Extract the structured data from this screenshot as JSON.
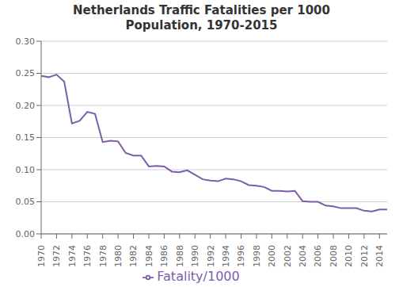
{
  "chart_data": {
    "type": "line",
    "title": "Netherlands Traffic Fatalities per 1000\nPopulation, 1970-2015",
    "x": [
      1970,
      1971,
      1972,
      1973,
      1974,
      1975,
      1976,
      1977,
      1978,
      1979,
      1980,
      1981,
      1982,
      1983,
      1984,
      1985,
      1986,
      1987,
      1988,
      1989,
      1990,
      1991,
      1992,
      1993,
      1994,
      1995,
      1996,
      1997,
      1998,
      1999,
      2000,
      2001,
      2002,
      2003,
      2004,
      2005,
      2006,
      2007,
      2008,
      2009,
      2010,
      2011,
      2012,
      2013,
      2014,
      2015
    ],
    "series": [
      {
        "name": "Fatality/1000",
        "color": "#7B5EA7",
        "values": [
          0.246,
          0.244,
          0.248,
          0.237,
          0.172,
          0.176,
          0.19,
          0.187,
          0.143,
          0.145,
          0.144,
          0.126,
          0.122,
          0.122,
          0.105,
          0.106,
          0.105,
          0.097,
          0.096,
          0.099,
          0.092,
          0.085,
          0.083,
          0.082,
          0.086,
          0.085,
          0.082,
          0.076,
          0.075,
          0.073,
          0.067,
          0.067,
          0.066,
          0.067,
          0.051,
          0.05,
          0.05,
          0.044,
          0.043,
          0.04,
          0.04,
          0.04,
          0.036,
          0.035,
          0.038,
          0.038
        ]
      }
    ],
    "xlim": [
      1970,
      2015
    ],
    "xticks": [
      1970,
      1972,
      1974,
      1976,
      1978,
      1980,
      1982,
      1984,
      1986,
      1988,
      1990,
      1992,
      1994,
      1996,
      1998,
      2000,
      2002,
      2004,
      2006,
      2008,
      2010,
      2012,
      2014
    ],
    "ylim": [
      0.0,
      0.3
    ],
    "yticks": [
      {
        "value": 0.0,
        "label": "0.00"
      },
      {
        "value": 0.05,
        "label": "0.05"
      },
      {
        "value": 0.1,
        "label": "0.10"
      },
      {
        "value": 0.15,
        "label": "0.15"
      },
      {
        "value": 0.2,
        "label": "0.20"
      },
      {
        "value": 0.25,
        "label": "0.25"
      },
      {
        "value": 0.3,
        "label": "0.30"
      }
    ],
    "grid": true,
    "legend": "bottom"
  }
}
